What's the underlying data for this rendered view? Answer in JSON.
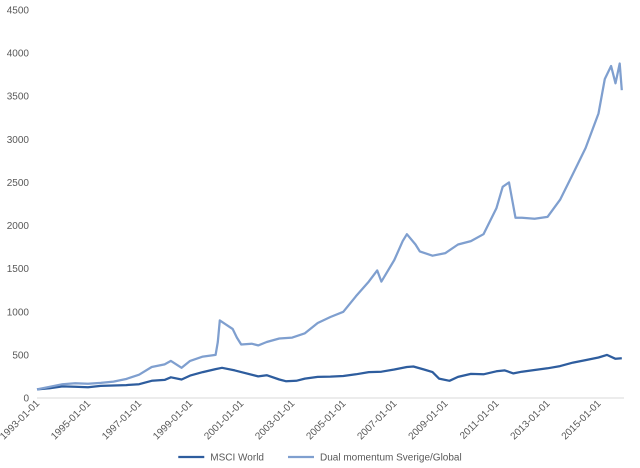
{
  "chart_data": {
    "type": "line",
    "title": "",
    "xlabel": "",
    "ylabel": "",
    "ylim": [
      0,
      4500
    ],
    "xlim": [
      "1993-01-01",
      "2016-01-01"
    ],
    "y_ticks": [
      0,
      500,
      1000,
      1500,
      2000,
      2500,
      3000,
      3500,
      4000,
      4500
    ],
    "x_ticks": [
      "1993-01-01",
      "1995-01-01",
      "1997-01-01",
      "1999-01-01",
      "2001-01-01",
      "2003-01-01",
      "2005-01-01",
      "2007-01-01",
      "2009-01-01",
      "2011-01-01",
      "2013-01-01",
      "2015-01-01"
    ],
    "grid": false,
    "legend_position": "bottom",
    "series": [
      {
        "name": "MSCI World",
        "color": "#2e5d9e",
        "points": [
          [
            "1993-01-01",
            100
          ],
          [
            "1993-07-01",
            112
          ],
          [
            "1994-01-01",
            135
          ],
          [
            "1994-07-01",
            130
          ],
          [
            "1995-01-01",
            125
          ],
          [
            "1995-07-01",
            140
          ],
          [
            "1996-01-01",
            145
          ],
          [
            "1996-07-01",
            150
          ],
          [
            "1997-01-01",
            160
          ],
          [
            "1997-07-01",
            200
          ],
          [
            "1998-01-01",
            210
          ],
          [
            "1998-04-01",
            240
          ],
          [
            "1998-09-01",
            215
          ],
          [
            "1999-01-01",
            260
          ],
          [
            "1999-07-01",
            300
          ],
          [
            "2000-01-01",
            335
          ],
          [
            "2000-04-01",
            350
          ],
          [
            "2000-10-01",
            320
          ],
          [
            "2001-01-01",
            300
          ],
          [
            "2001-09-01",
            250
          ],
          [
            "2002-01-01",
            265
          ],
          [
            "2002-07-01",
            215
          ],
          [
            "2002-10-01",
            195
          ],
          [
            "2003-03-01",
            200
          ],
          [
            "2003-07-01",
            225
          ],
          [
            "2004-01-01",
            245
          ],
          [
            "2004-07-01",
            248
          ],
          [
            "2005-01-01",
            255
          ],
          [
            "2005-07-01",
            275
          ],
          [
            "2006-01-01",
            300
          ],
          [
            "2006-07-01",
            305
          ],
          [
            "2007-01-01",
            330
          ],
          [
            "2007-07-01",
            360
          ],
          [
            "2007-10-01",
            365
          ],
          [
            "2008-03-01",
            330
          ],
          [
            "2008-07-01",
            300
          ],
          [
            "2008-10-01",
            225
          ],
          [
            "2009-03-01",
            200
          ],
          [
            "2009-07-01",
            245
          ],
          [
            "2010-01-01",
            280
          ],
          [
            "2010-07-01",
            275
          ],
          [
            "2011-01-01",
            310
          ],
          [
            "2011-05-01",
            320
          ],
          [
            "2011-09-01",
            285
          ],
          [
            "2012-01-01",
            305
          ],
          [
            "2012-07-01",
            325
          ],
          [
            "2013-01-01",
            345
          ],
          [
            "2013-07-01",
            370
          ],
          [
            "2014-01-01",
            410
          ],
          [
            "2014-07-01",
            440
          ],
          [
            "2015-01-01",
            470
          ],
          [
            "2015-05-01",
            500
          ],
          [
            "2015-09-01",
            455
          ],
          [
            "2015-12-01",
            460
          ]
        ]
      },
      {
        "name": "Dual momentum Sverige/Global",
        "color": "#7f9fcf",
        "points": [
          [
            "1993-01-01",
            100
          ],
          [
            "1993-07-01",
            130
          ],
          [
            "1994-01-01",
            160
          ],
          [
            "1994-07-01",
            170
          ],
          [
            "1995-01-01",
            165
          ],
          [
            "1995-07-01",
            175
          ],
          [
            "1996-01-01",
            190
          ],
          [
            "1996-07-01",
            220
          ],
          [
            "1997-01-01",
            270
          ],
          [
            "1997-07-01",
            360
          ],
          [
            "1998-01-01",
            390
          ],
          [
            "1998-04-01",
            430
          ],
          [
            "1998-09-01",
            350
          ],
          [
            "1999-01-01",
            430
          ],
          [
            "1999-07-01",
            480
          ],
          [
            "2000-01-01",
            500
          ],
          [
            "2000-02-01",
            650
          ],
          [
            "2000-03-01",
            900
          ],
          [
            "2000-06-01",
            850
          ],
          [
            "2000-09-01",
            800
          ],
          [
            "2000-11-01",
            700
          ],
          [
            "2001-01-01",
            620
          ],
          [
            "2001-06-01",
            630
          ],
          [
            "2001-09-01",
            610
          ],
          [
            "2002-01-01",
            650
          ],
          [
            "2002-07-01",
            690
          ],
          [
            "2003-01-01",
            700
          ],
          [
            "2003-07-01",
            750
          ],
          [
            "2004-01-01",
            870
          ],
          [
            "2004-07-01",
            940
          ],
          [
            "2005-01-01",
            1000
          ],
          [
            "2005-07-01",
            1180
          ],
          [
            "2006-01-01",
            1350
          ],
          [
            "2006-05-01",
            1480
          ],
          [
            "2006-07-01",
            1350
          ],
          [
            "2007-01-01",
            1600
          ],
          [
            "2007-05-01",
            1820
          ],
          [
            "2007-07-01",
            1900
          ],
          [
            "2007-11-01",
            1780
          ],
          [
            "2008-01-01",
            1700
          ],
          [
            "2008-07-01",
            1650
          ],
          [
            "2009-01-01",
            1680
          ],
          [
            "2009-07-01",
            1780
          ],
          [
            "2010-01-01",
            1820
          ],
          [
            "2010-07-01",
            1900
          ],
          [
            "2011-01-01",
            2200
          ],
          [
            "2011-04-01",
            2450
          ],
          [
            "2011-07-01",
            2500
          ],
          [
            "2011-10-01",
            2090
          ],
          [
            "2012-01-01",
            2090
          ],
          [
            "2012-07-01",
            2080
          ],
          [
            "2013-01-01",
            2100
          ],
          [
            "2013-07-01",
            2300
          ],
          [
            "2014-01-01",
            2600
          ],
          [
            "2014-07-01",
            2900
          ],
          [
            "2015-01-01",
            3300
          ],
          [
            "2015-04-01",
            3700
          ],
          [
            "2015-07-01",
            3850
          ],
          [
            "2015-09-01",
            3650
          ],
          [
            "2015-11-01",
            3880
          ],
          [
            "2015-12-01",
            3570
          ]
        ]
      }
    ]
  }
}
